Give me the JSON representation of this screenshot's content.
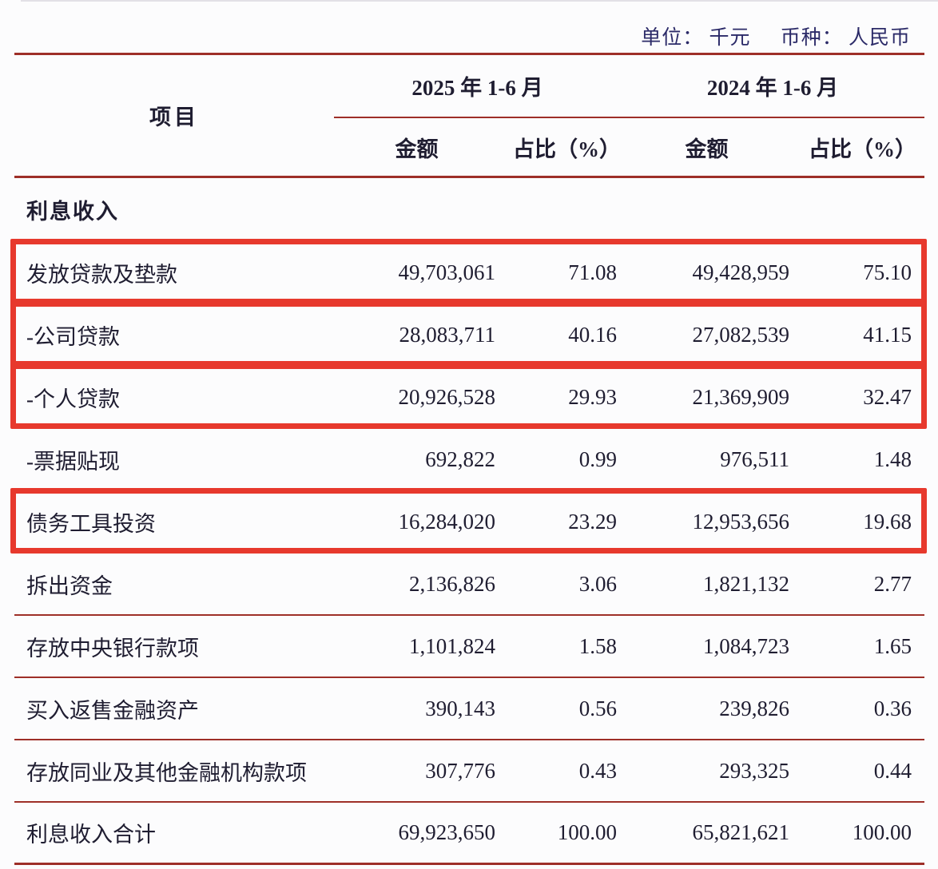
{
  "meta": {
    "unit_text": "单位： 千元",
    "currency_text": "币种： 人民币"
  },
  "table": {
    "item_header": "项目",
    "col_groups": [
      {
        "label": "2025 年 1-6 月"
      },
      {
        "label": "2024 年 1-6 月"
      }
    ],
    "sub_headers": {
      "amount_2025": "金额",
      "ratio_2025": "占比（%）",
      "amount_2024": "金额",
      "ratio_2024": "占比（%）"
    },
    "section_header": "利息收入",
    "rows": [
      {
        "key": "loans-and-advances",
        "label": "发放贷款及垫款",
        "amount_2025": "49,703,061",
        "pct_2025": "71.08",
        "amount_2024": "49,428,959",
        "pct_2024": "75.10",
        "highlighted": true,
        "total": false
      },
      {
        "key": "corporate-loans",
        "label": "-公司贷款",
        "amount_2025": "28,083,711",
        "pct_2025": "40.16",
        "amount_2024": "27,082,539",
        "pct_2024": "41.15",
        "highlighted": true,
        "total": false
      },
      {
        "key": "personal-loans",
        "label": "-个人贷款",
        "amount_2025": "20,926,528",
        "pct_2025": "29.93",
        "amount_2024": "21,369,909",
        "pct_2024": "32.47",
        "highlighted": true,
        "total": false
      },
      {
        "key": "discounted-bills",
        "label": "-票据贴现",
        "amount_2025": "692,822",
        "pct_2025": "0.99",
        "amount_2024": "976,511",
        "pct_2024": "1.48",
        "highlighted": false,
        "total": false
      },
      {
        "key": "debt-instrument-investments",
        "label": "债务工具投资",
        "amount_2025": "16,284,020",
        "pct_2025": "23.29",
        "amount_2024": "12,953,656",
        "pct_2024": "19.68",
        "highlighted": true,
        "total": false
      },
      {
        "key": "funds-lent",
        "label": "拆出资金",
        "amount_2025": "2,136,826",
        "pct_2025": "3.06",
        "amount_2024": "1,821,132",
        "pct_2024": "2.77",
        "highlighted": false,
        "total": false
      },
      {
        "key": "deposits-with-central-bank",
        "label": "存放中央银行款项",
        "amount_2025": "1,101,824",
        "pct_2025": "1.58",
        "amount_2024": "1,084,723",
        "pct_2024": "1.65",
        "highlighted": false,
        "total": false
      },
      {
        "key": "assets-purchased-under-resale",
        "label": "买入返售金融资产",
        "amount_2025": "390,143",
        "pct_2025": "0.56",
        "amount_2024": "239,826",
        "pct_2024": "0.36",
        "highlighted": false,
        "total": false
      },
      {
        "key": "deposits-with-banks-and-other-fi",
        "label": "存放同业及其他金融机构款项",
        "amount_2025": "307,776",
        "pct_2025": "0.43",
        "amount_2024": "293,325",
        "pct_2024": "0.44",
        "highlighted": false,
        "total": false
      },
      {
        "key": "total-interest-income",
        "label": "利息收入合计",
        "amount_2025": "69,923,650",
        "pct_2025": "100.00",
        "amount_2024": "65,821,621",
        "pct_2024": "100.00",
        "highlighted": false,
        "total": true
      }
    ]
  },
  "colors": {
    "rule": "#9e2f28",
    "highlight": "#e7392d",
    "text": "#1f1d31",
    "unit_text": "#2b2a68",
    "background": "#fcfcfd"
  }
}
